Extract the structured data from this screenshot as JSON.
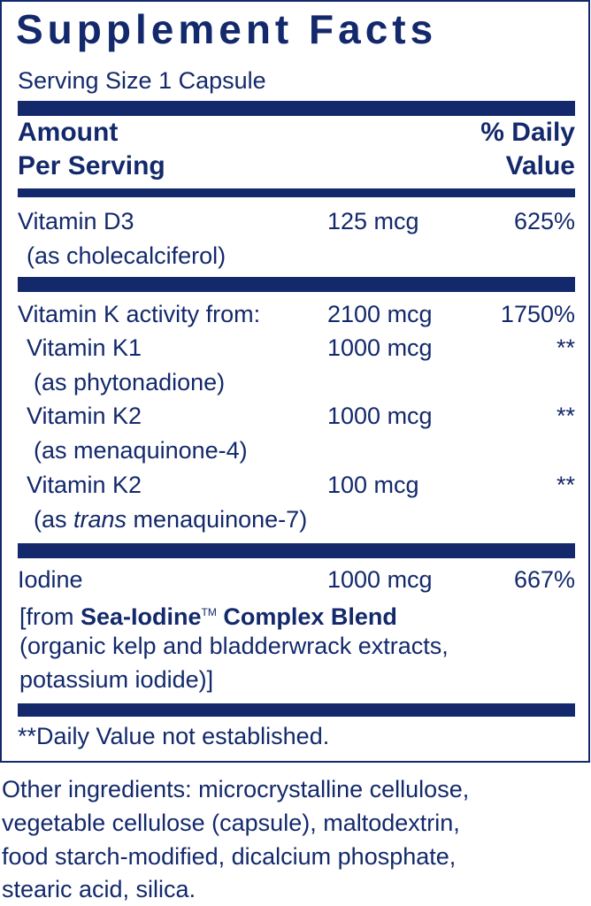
{
  "title": "Supplement Facts",
  "serving_size": "Serving Size 1 Capsule",
  "header": {
    "amount_line1": "Amount",
    "amount_line2": "Per Serving",
    "dv_line1": "% Daily",
    "dv_line2": "Value"
  },
  "rows": [
    {
      "name": "Vitamin D3",
      "sub": "(as cholecalciferol)",
      "amount": "125 mcg",
      "dv": "625%"
    },
    {
      "name": "Vitamin K activity from:",
      "amount": "2100 mcg",
      "dv": "1750%"
    },
    {
      "name": "Vitamin K1",
      "sub": "(as phytonadione)",
      "amount": "1000 mcg",
      "dv": "**"
    },
    {
      "name": "Vitamin K2",
      "sub": "(as menaquinone-4)",
      "amount": "1000 mcg",
      "dv": "**"
    },
    {
      "name": "Vitamin K2",
      "sub_prefix": "(as ",
      "sub_italic": "trans",
      "sub_suffix": " menaquinone-7)",
      "amount": "100 mcg",
      "dv": "**"
    },
    {
      "name": "Iodine",
      "amount": "1000 mcg",
      "dv": "667%",
      "sub1_prefix": "[from ",
      "sub1_bold": "Sea-Iodine",
      "sub1_tm": "TM",
      "sub1_bold2": " Complex Blend",
      "sub2": "(organic kelp and bladderwrack extracts,",
      "sub3": "potassium iodide)]"
    }
  ],
  "footnote": "**Daily Value not established.",
  "other_ingredients": [
    "Other ingredients: microcrystalline cellulose,",
    "vegetable cellulose (capsule), maltodextrin,",
    "food starch-modified, dicalcium phosphate,",
    "stearic acid, silica."
  ],
  "colors": {
    "text": "#13296b"
  }
}
